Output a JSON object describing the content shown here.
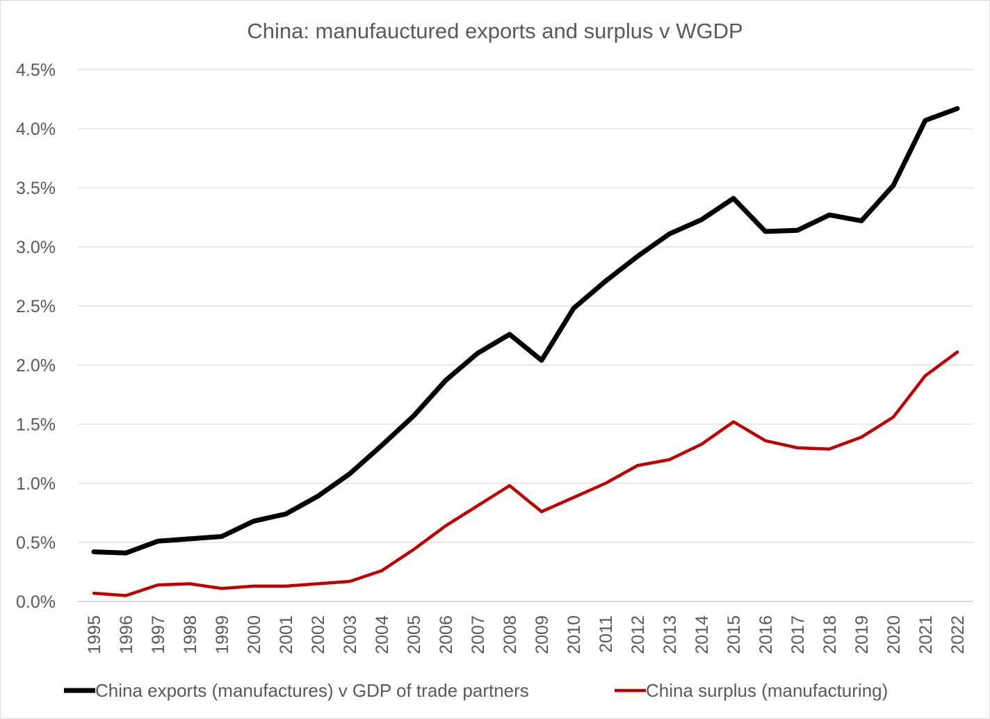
{
  "chart_data": {
    "type": "line",
    "title": "China: manufauctured exports and surplus v WGDP",
    "xlabel": "",
    "ylabel": "",
    "ylim": [
      0,
      0.045
    ],
    "y_ticks": [
      "0.0%",
      "0.5%",
      "1.0%",
      "1.5%",
      "2.0%",
      "2.5%",
      "3.0%",
      "3.5%",
      "4.0%",
      "4.5%"
    ],
    "grid": true,
    "legend_position": "bottom",
    "categories": [
      "1995",
      "1996",
      "1997",
      "1998",
      "1999",
      "2000",
      "2001",
      "2002",
      "2003",
      "2004",
      "2005",
      "2006",
      "2007",
      "2008",
      "2009",
      "2010",
      "2011",
      "2012",
      "2013",
      "2014",
      "2015",
      "2016",
      "2017",
      "2018",
      "2019",
      "2020",
      "2021",
      "2022"
    ],
    "series": [
      {
        "name": "China exports (manufactures) v GDP of trade partners",
        "color": "#000000",
        "values": [
          0.0042,
          0.0041,
          0.0051,
          0.0053,
          0.0055,
          0.0068,
          0.0074,
          0.0089,
          0.0108,
          0.0132,
          0.0157,
          0.0187,
          0.021,
          0.0226,
          0.0204,
          0.0248,
          0.0271,
          0.0292,
          0.0311,
          0.0323,
          0.0341,
          0.0313,
          0.0314,
          0.0327,
          0.0322,
          0.0352,
          0.0407,
          0.0417
        ]
      },
      {
        "name": "China surplus (manufacturing)",
        "color": "#c00000",
        "values": [
          0.0007,
          0.0005,
          0.0014,
          0.0015,
          0.0011,
          0.0013,
          0.0013,
          0.0015,
          0.0017,
          0.0026,
          0.0044,
          0.0064,
          0.0081,
          0.0098,
          0.0076,
          0.0088,
          0.01,
          0.0115,
          0.012,
          0.0133,
          0.0152,
          0.0136,
          0.013,
          0.0129,
          0.0139,
          0.0156,
          0.0191,
          0.0211
        ]
      }
    ]
  }
}
